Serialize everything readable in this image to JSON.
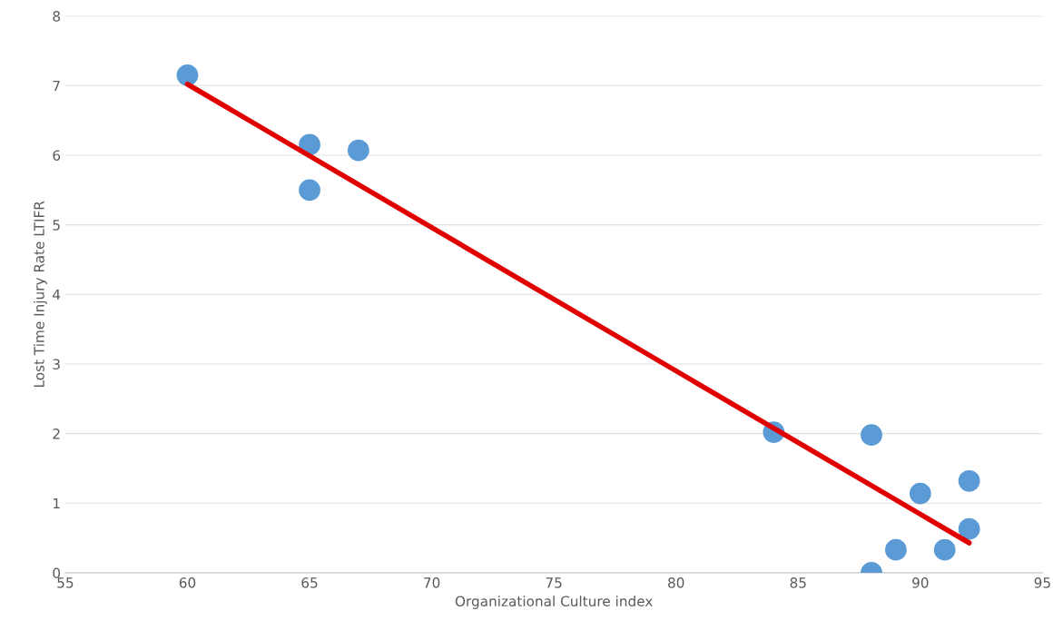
{
  "chart_data": {
    "type": "scatter",
    "xlabel": "Organizational Culture index",
    "ylabel": "Lost Time Injury Rate LTIFR",
    "xlim": [
      55,
      95
    ],
    "xticks": [
      55,
      60,
      65,
      70,
      75,
      80,
      85,
      90,
      95
    ],
    "ylim": [
      0,
      8
    ],
    "yticks": [
      0,
      1,
      2,
      3,
      4,
      5,
      6,
      7,
      8
    ],
    "grid": "y",
    "series": [
      {
        "marker": "circle",
        "color": "#5b9bd5",
        "x": [
          60,
          65,
          67,
          65,
          84,
          88,
          90,
          92,
          92,
          89,
          91,
          88
        ],
        "values": [
          7.15,
          6.15,
          6.07,
          5.5,
          2.02,
          1.98,
          1.14,
          1.32,
          0.63,
          0.33,
          0.33,
          0.0
        ]
      },
      {
        "type": "line",
        "marker": "none",
        "color": "#e00000",
        "x": [
          60,
          92
        ],
        "values": [
          7.02,
          0.43
        ]
      }
    ]
  }
}
